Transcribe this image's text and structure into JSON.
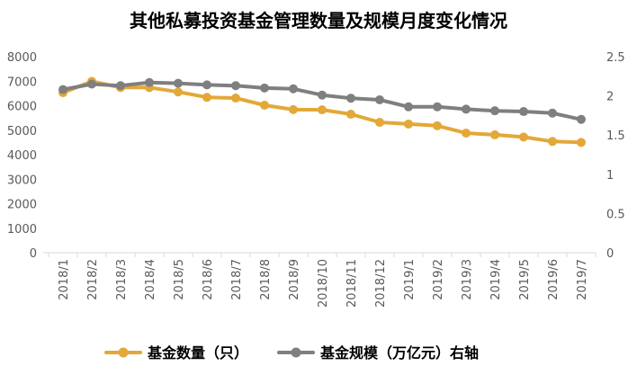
{
  "chart_data": {
    "type": "line",
    "title": "其他私募投资基金管理数量及规模月度变化情况",
    "categories": [
      "2018/1",
      "2018/2",
      "2018/3",
      "2018/4",
      "2018/5",
      "2018/6",
      "2018/7",
      "2018/8",
      "2018/9",
      "2018/10",
      "2018/11",
      "2018/12",
      "2019/1",
      "2019/2",
      "2019/3",
      "2019/4",
      "2019/5",
      "2019/6",
      "2019/7"
    ],
    "y_left": {
      "min": 0,
      "max": 8000,
      "ticks": [
        0,
        1000,
        2000,
        3000,
        4000,
        5000,
        6000,
        7000,
        8000
      ]
    },
    "y_right": {
      "min": 0,
      "max": 2.5,
      "ticks": [
        "0",
        "0.5",
        "1",
        "1.5",
        "2",
        "2.5"
      ]
    },
    "grid": false,
    "legend_position": "bottom",
    "series": [
      {
        "name": "基金数量（只）",
        "axis": "left",
        "color": "#E3A838",
        "values": [
          6530,
          6990,
          6740,
          6740,
          6560,
          6340,
          6310,
          6020,
          5840,
          5830,
          5650,
          5320,
          5250,
          5180,
          4880,
          4810,
          4720,
          4540,
          4500
        ]
      },
      {
        "name": "基金规模（万亿元）右轴",
        "axis": "right",
        "color": "#7F7F7F",
        "values": [
          2.08,
          2.15,
          2.13,
          2.17,
          2.16,
          2.14,
          2.13,
          2.1,
          2.09,
          2.01,
          1.97,
          1.95,
          1.86,
          1.86,
          1.83,
          1.81,
          1.8,
          1.78,
          1.7
        ]
      }
    ]
  }
}
